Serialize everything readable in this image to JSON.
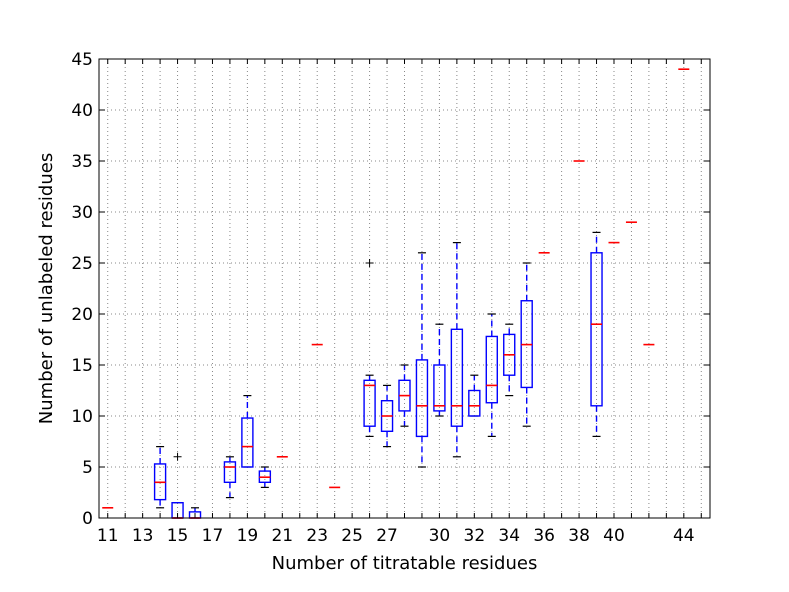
{
  "chart_data": {
    "type": "box",
    "xlabel": "Number of titratable residues",
    "ylabel": "Number of unlabeled residues",
    "ylim": [
      0,
      45
    ],
    "yticks": [
      0,
      5,
      10,
      15,
      20,
      25,
      30,
      35,
      40,
      45
    ],
    "grid": true,
    "x_tick_labels": [
      "11",
      "13",
      "15",
      "17",
      "19",
      "21",
      "23",
      "25",
      "27",
      "30",
      "32",
      "34",
      "36",
      "38",
      "40",
      "44"
    ],
    "colors": {
      "box": "#0000ff",
      "median": "#ff0000",
      "flier": "#000000",
      "grid": "#888888"
    },
    "categories": [
      "11",
      "12",
      "13",
      "14",
      "15",
      "16",
      "17",
      "18",
      "19",
      "20",
      "21",
      "22",
      "23",
      "24",
      "25",
      "26",
      "27",
      "28",
      "29",
      "30",
      "31",
      "32",
      "33",
      "34",
      "35",
      "36",
      "37",
      "38",
      "39",
      "40",
      "41",
      "42",
      "43",
      "44",
      "45"
    ],
    "boxes": [
      {
        "x": "11",
        "median": 1
      },
      {
        "x": "14",
        "q1": 1.8,
        "median": 3.5,
        "q3": 5.3,
        "whislo": 1,
        "whishi": 7
      },
      {
        "x": "15",
        "q1": 0,
        "median": 0,
        "q3": 1.5,
        "whislo": 0,
        "whishi": 1.5,
        "fliers": [
          6
        ]
      },
      {
        "x": "16",
        "q1": 0,
        "median": 0,
        "q3": 0.6,
        "whislo": 0,
        "whishi": 1
      },
      {
        "x": "18",
        "q1": 3.5,
        "median": 5,
        "q3": 5.5,
        "whislo": 2,
        "whishi": 6
      },
      {
        "x": "19",
        "q1": 5,
        "median": 7,
        "q3": 9.8,
        "whislo": 5,
        "whishi": 12
      },
      {
        "x": "20",
        "q1": 3.5,
        "median": 4,
        "q3": 4.6,
        "whislo": 3,
        "whishi": 5
      },
      {
        "x": "21",
        "median": 6
      },
      {
        "x": "23",
        "median": 17
      },
      {
        "x": "24",
        "median": 3
      },
      {
        "x": "26",
        "q1": 9,
        "median": 13,
        "q3": 13.5,
        "whislo": 8,
        "whishi": 14,
        "fliers": [
          25
        ]
      },
      {
        "x": "27",
        "q1": 8.5,
        "median": 10,
        "q3": 11.5,
        "whislo": 7,
        "whishi": 13
      },
      {
        "x": "28",
        "q1": 10.5,
        "median": 12,
        "q3": 13.5,
        "whislo": 9,
        "whishi": 15
      },
      {
        "x": "29",
        "q1": 8,
        "median": 11,
        "q3": 15.5,
        "whislo": 5,
        "whishi": 26
      },
      {
        "x": "30",
        "q1": 10.5,
        "median": 11,
        "q3": 15,
        "whislo": 10,
        "whishi": 19
      },
      {
        "x": "31",
        "q1": 9,
        "median": 11,
        "q3": 18.5,
        "whislo": 6,
        "whishi": 27
      },
      {
        "x": "32",
        "q1": 10,
        "median": 11,
        "q3": 12.5,
        "whislo": 10,
        "whishi": 14
      },
      {
        "x": "33",
        "q1": 11.3,
        "median": 13,
        "q3": 17.8,
        "whislo": 8,
        "whishi": 20
      },
      {
        "x": "34",
        "q1": 14,
        "median": 16,
        "q3": 18,
        "whislo": 12,
        "whishi": 19
      },
      {
        "x": "35",
        "q1": 12.8,
        "median": 17,
        "q3": 21.3,
        "whislo": 9,
        "whishi": 25
      },
      {
        "x": "36",
        "median": 26
      },
      {
        "x": "38",
        "median": 35
      },
      {
        "x": "39",
        "q1": 11,
        "median": 19,
        "q3": 26,
        "whislo": 8,
        "whishi": 28
      },
      {
        "x": "40",
        "median": 27
      },
      {
        "x": "41",
        "median": 29
      },
      {
        "x": "42",
        "median": 17
      },
      {
        "x": "44",
        "median": 44
      }
    ]
  }
}
